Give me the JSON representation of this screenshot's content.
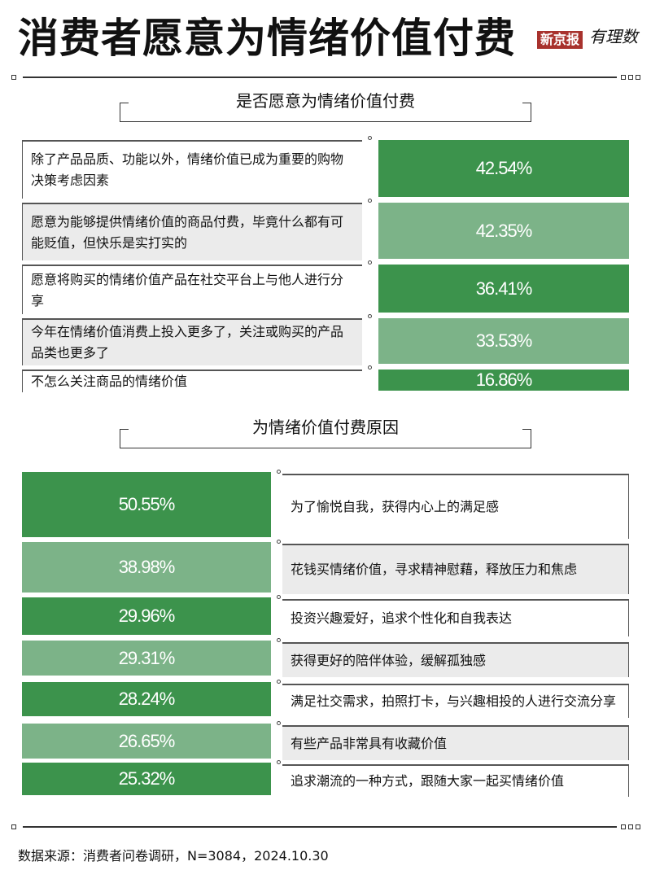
{
  "title": "消费者愿意为情绪价值付费",
  "logo": {
    "brand": "新京报",
    "sub": "有理数"
  },
  "colors": {
    "dark_green": "#3c934c",
    "light_green": "#7cb388",
    "row_gray": "#ebebeb",
    "logo_red": "#a8322d"
  },
  "chart_data": [
    {
      "type": "bar",
      "title": "是否愿意为情绪价值付费",
      "unit": "%",
      "categories": [
        "除了产品品质、功能以外，情绪价值已成为重要的购物决策考虑因素",
        "愿意为能够提供情绪价值的商品付费，毕竟什么都有可能贬值，但快乐是实打实的",
        "愿意将购买的情绪价值产品在社交平台上与他人进行分享",
        "今年在情绪价值消费上投入更多了，关注或购买的产品品类也更多了",
        "不怎么关注商品的情绪价值"
      ],
      "values": [
        42.54,
        42.35,
        36.41,
        33.53,
        16.86
      ],
      "labels": [
        "42.54%",
        "42.35%",
        "36.41%",
        "33.53%",
        "16.86%"
      ]
    },
    {
      "type": "bar",
      "title": "为情绪价值付费原因",
      "unit": "%",
      "categories": [
        "为了愉悦自我，获得内心上的满足感",
        "花钱买情绪价值，寻求精神慰藉，释放压力和焦虑",
        "投资兴趣爱好，追求个性化和自我表达",
        "获得更好的陪伴体验，缓解孤独感",
        "满足社交需求，拍照打卡，与兴趣相投的人进行交流分享",
        "有些产品非常具有收藏价值",
        "追求潮流的一种方式，跟随大家一起买情绪价值"
      ],
      "values": [
        50.55,
        38.98,
        29.96,
        29.31,
        28.24,
        26.65,
        25.32
      ],
      "labels": [
        "50.55%",
        "38.98%",
        "29.96%",
        "29.31%",
        "28.24%",
        "26.65%",
        "25.32%"
      ]
    }
  ],
  "source": "数据来源：消费者问卷调研，N=3084，2024.10.30"
}
